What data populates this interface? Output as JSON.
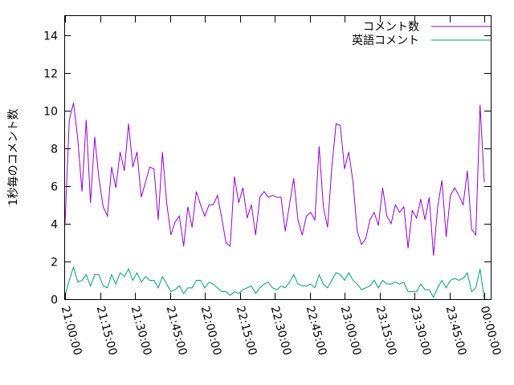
{
  "chart_data": {
    "type": "line",
    "ylabel": "1秒毎のコメント数",
    "xlabel": "",
    "ylim": [
      0,
      15
    ],
    "yticks": [
      0,
      2,
      4,
      6,
      8,
      10,
      12,
      14
    ],
    "xtick_labels": [
      "21:00:00",
      "21:15:00",
      "21:30:00",
      "21:45:00",
      "22:00:00",
      "22:15:00",
      "22:30:00",
      "22:45:00",
      "23:00:00",
      "23:15:00",
      "23:30:00",
      "23:45:00",
      "00:00:00"
    ],
    "grid": false,
    "legend_position": "top-right",
    "series": [
      {
        "name": "コメント数",
        "color": "#9400d3",
        "values": [
          4.0,
          9.5,
          10.4,
          8.5,
          5.7,
          9.5,
          5.1,
          8.6,
          6.4,
          4.9,
          4.4,
          7.0,
          5.9,
          7.8,
          6.8,
          9.3,
          7.0,
          7.8,
          5.4,
          6.2,
          7.0,
          6.9,
          4.2,
          7.8,
          5.1,
          3.4,
          4.1,
          4.4,
          2.8,
          4.9,
          3.8,
          5.7,
          5.0,
          4.4,
          5.0,
          5.0,
          5.5,
          4.3,
          3.0,
          2.8,
          6.5,
          5.1,
          5.9,
          4.3,
          5.0,
          3.4,
          5.4,
          5.7,
          5.4,
          5.5,
          5.4,
          5.4,
          3.6,
          5.0,
          6.4,
          4.2,
          3.4,
          4.4,
          4.6,
          4.2,
          8.1,
          4.9,
          3.8,
          7.0,
          9.3,
          9.2,
          6.9,
          7.8,
          6.2,
          3.6,
          2.9,
          3.2,
          4.2,
          4.6,
          3.9,
          5.9,
          4.4,
          4.0,
          5.0,
          4.6,
          4.9,
          2.7,
          4.7,
          4.3,
          5.3,
          4.2,
          5.4,
          2.3,
          4.9,
          6.3,
          3.3,
          5.5,
          5.9,
          5.5,
          5.0,
          6.8,
          3.7,
          3.4,
          10.3,
          6.2
        ]
      },
      {
        "name": "英語コメント",
        "color": "#009e73",
        "values": [
          0.2,
          1.0,
          1.7,
          0.9,
          1.0,
          1.3,
          0.7,
          1.3,
          1.3,
          0.7,
          0.6,
          1.3,
          0.8,
          1.4,
          1.2,
          1.6,
          1.0,
          1.4,
          0.9,
          1.2,
          1.0,
          1.0,
          0.6,
          1.2,
          0.8,
          0.4,
          0.5,
          0.7,
          0.3,
          0.6,
          0.6,
          1.0,
          1.0,
          0.6,
          0.9,
          0.8,
          0.6,
          0.4,
          0.4,
          0.2,
          0.4,
          0.3,
          0.5,
          0.6,
          0.7,
          0.3,
          0.6,
          0.8,
          0.9,
          0.6,
          0.5,
          0.7,
          0.6,
          0.9,
          1.3,
          0.8,
          0.7,
          0.7,
          0.8,
          0.6,
          1.3,
          0.8,
          0.6,
          1.0,
          1.4,
          1.3,
          1.0,
          1.4,
          1.0,
          0.8,
          0.5,
          0.6,
          0.7,
          1.0,
          0.6,
          1.0,
          0.8,
          0.8,
          0.9,
          0.8,
          0.9,
          0.4,
          0.4,
          0.4,
          0.8,
          0.5,
          0.5,
          0.1,
          0.6,
          1.0,
          0.6,
          1.0,
          1.1,
          1.0,
          1.1,
          1.4,
          0.4,
          0.6,
          1.6,
          0.0
        ]
      }
    ]
  }
}
